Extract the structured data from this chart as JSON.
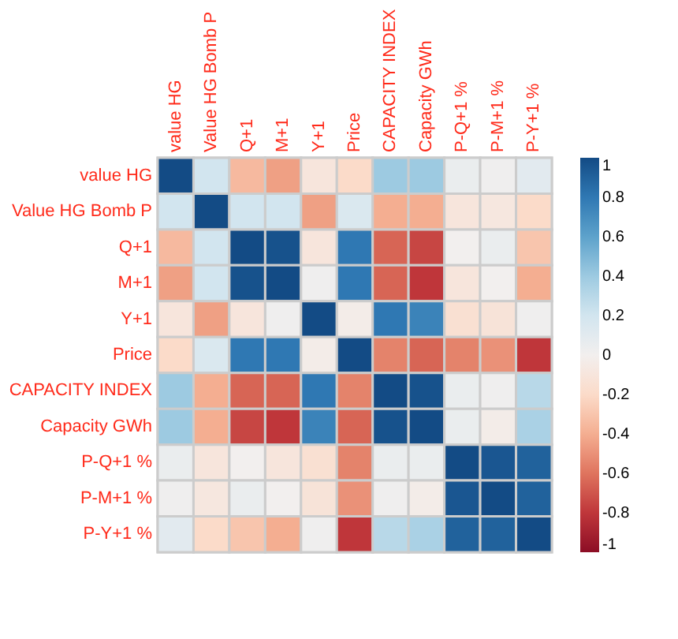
{
  "chart_data": {
    "type": "heatmap",
    "categories": [
      "value HG",
      "Value HG Bomb P",
      "Q+1",
      "M+1",
      "Y+1",
      "Price",
      "CAPACITY INDEX",
      "Capacity GWh",
      "P-Q+1 %",
      "P-M+1 %",
      "P-Y+1 %"
    ],
    "y_categories": [
      "value HG",
      "Value HG Bomb P",
      "Q+1",
      "M+1",
      "Y+1",
      "Price",
      "CAPACITY INDEX",
      "Capacity GWh",
      "P-Q+1 %",
      "P-M+1 %",
      "P-Y+1 %"
    ],
    "cells": [
      [
        1,
        0.2,
        -0.35,
        -0.45,
        -0.1,
        -0.2,
        0.4,
        0.4,
        0.05,
        0.02,
        0.1
      ],
      [
        0.2,
        1,
        0.2,
        0.2,
        -0.45,
        0.15,
        -0.4,
        -0.4,
        -0.1,
        -0.08,
        -0.2
      ],
      [
        -0.35,
        0.2,
        1,
        0.97,
        -0.1,
        0.8,
        -0.65,
        -0.75,
        0.0,
        0.05,
        -0.3
      ],
      [
        -0.45,
        0.2,
        0.97,
        1,
        0.02,
        0.8,
        -0.65,
        -0.8,
        -0.1,
        0.0,
        -0.4
      ],
      [
        -0.1,
        -0.45,
        -0.1,
        0.02,
        1,
        -0.03,
        0.8,
        0.75,
        -0.15,
        -0.12,
        0.02
      ],
      [
        -0.2,
        0.15,
        0.8,
        0.8,
        -0.03,
        1,
        -0.55,
        -0.65,
        -0.55,
        -0.5,
        -0.8
      ],
      [
        0.4,
        -0.4,
        -0.65,
        -0.65,
        0.8,
        -0.55,
        1,
        0.97,
        0.05,
        0.02,
        0.3
      ],
      [
        0.4,
        -0.4,
        -0.75,
        -0.8,
        0.75,
        -0.65,
        0.97,
        1,
        0.05,
        -0.03,
        0.35
      ],
      [
        0.05,
        -0.1,
        0.0,
        -0.1,
        -0.15,
        -0.55,
        0.05,
        0.05,
        1,
        0.95,
        0.9
      ],
      [
        0.02,
        -0.08,
        0.05,
        0.0,
        -0.12,
        -0.5,
        0.02,
        -0.03,
        0.95,
        1,
        0.9
      ],
      [
        0.1,
        -0.2,
        -0.3,
        -0.4,
        0.02,
        -0.8,
        0.3,
        0.35,
        0.9,
        0.9,
        1
      ]
    ],
    "clim": [
      -1,
      1
    ],
    "cticks": [
      -1,
      -0.8,
      -0.6,
      -0.4,
      -0.2,
      0,
      0.2,
      0.4,
      0.6,
      0.8,
      1
    ]
  }
}
